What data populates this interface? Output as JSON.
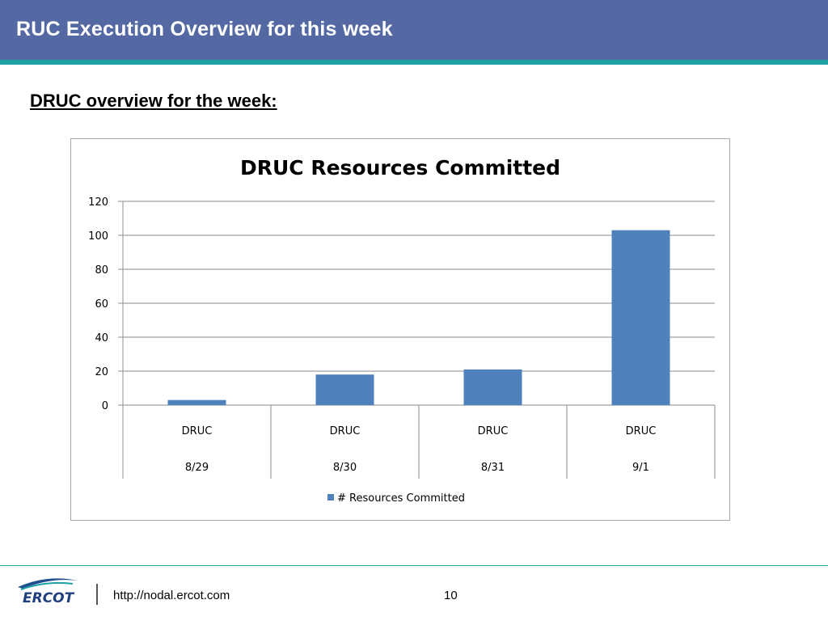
{
  "slide": {
    "title": "RUC Execution Overview for this week",
    "subtitle": "DRUC overview for the week:"
  },
  "footer": {
    "url": "http://nodal.ercot.com",
    "page_number": "10",
    "logo_text": "ERCOT"
  },
  "colors": {
    "header": "#5468a3",
    "accent": "#1fa1a6",
    "bar": "#4f81bd"
  },
  "chart_data": {
    "type": "bar",
    "title": "DRUC Resources Committed",
    "categories": [
      {
        "line1": "DRUC",
        "line2": "8/29"
      },
      {
        "line1": "DRUC",
        "line2": "8/30"
      },
      {
        "line1": "DRUC",
        "line2": "8/31"
      },
      {
        "line1": "DRUC",
        "line2": "9/1"
      }
    ],
    "series": [
      {
        "name": "# Resources Committed",
        "values": [
          3,
          18,
          21,
          103
        ]
      }
    ],
    "ylim": [
      0,
      120
    ],
    "yticks": [
      0,
      20,
      40,
      60,
      80,
      100,
      120
    ],
    "grid": true,
    "legend": "bottom"
  }
}
